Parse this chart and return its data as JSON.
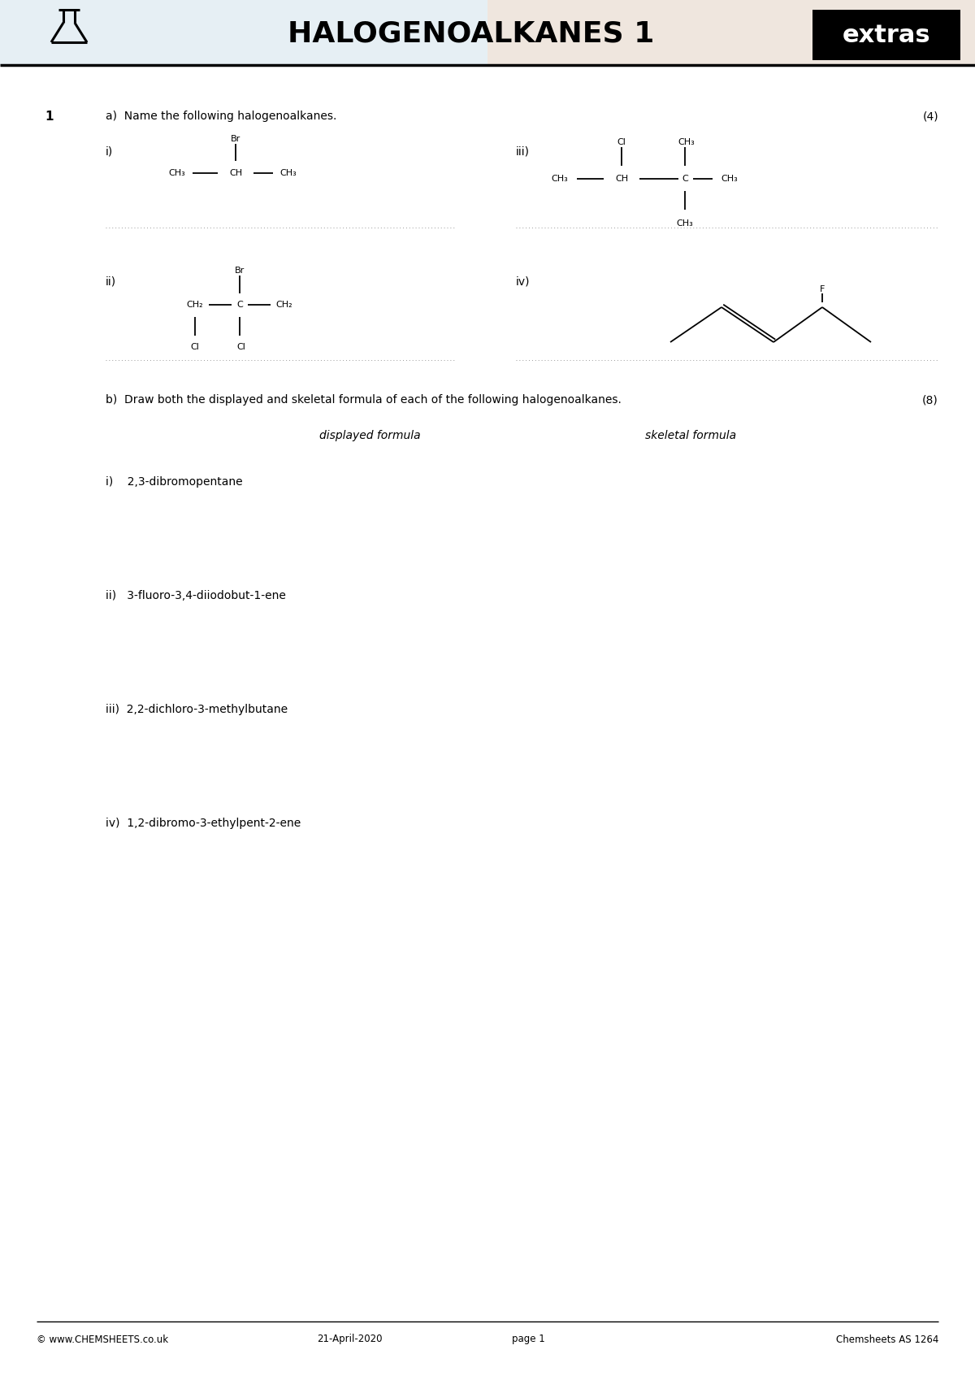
{
  "title": "HALOGENOALKANES 1",
  "extras_label": "extras",
  "background_color": "#ffffff",
  "q1_label": "1",
  "q1a_text": "a)  Name the following halogenoalkanes.",
  "q1a_marks": "(4)",
  "q1b_text": "b)  Draw both the displayed and skeletal formula of each of the following halogenoalkanes.",
  "q1b_marks": "(8)",
  "displayed_formula_label": "displayed formula",
  "skeletal_formula_label": "skeletal formula",
  "b_compounds": [
    "i)    2,3-dibromopentane",
    "ii)   3-fluoro-3,4-diiodobut-1-ene",
    "iii)  2,2-dichloro-3-methylbutane",
    "iv)  1,2-dibromo-3-ethylpent-2-ene"
  ],
  "footer_left": "© www.CHEMSHEETS.co.uk",
  "footer_center": "21-April-2020",
  "footer_center2": "page 1",
  "footer_right": "Chemsheets AS 1264",
  "text_color": "#000000",
  "header_bg_left": "#cde0ed",
  "header_bg_right": "#e8d8c8"
}
